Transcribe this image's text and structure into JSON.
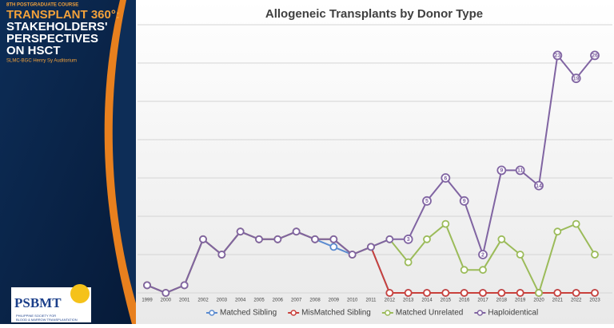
{
  "slide": {
    "course": "8TH POSTGRADUATE COURSE",
    "title_lines": [
      "TRANSPLANT 360°:",
      "STAKEHOLDERS'",
      "PERSPECTIVES",
      "ON HSCT"
    ],
    "venue": "SLMC-BGC Henry Sy Auditorium",
    "logo": "PSBMT",
    "logo_caption": [
      "PHILIPPINE SOCIETY FOR",
      "BLOOD & MARROW TRANSPLANTATION"
    ]
  },
  "chart_data": {
    "type": "line",
    "stacked": true,
    "title": "Allogeneic Transplants by Donor Type",
    "categories": [
      "1999",
      "2000",
      "2001",
      "2002",
      "2003",
      "2004",
      "2005",
      "2006",
      "2007",
      "2008",
      "2009",
      "2010",
      "2011",
      "2012",
      "2013",
      "2014",
      "2015",
      "2016",
      "2017",
      "2018",
      "2019",
      "2020",
      "2021",
      "2022",
      "2023"
    ],
    "series": [
      {
        "name": "Matched Sibling",
        "color": "#5b8bd0",
        "values": [
          1,
          0,
          1,
          7,
          5,
          8,
          7,
          7,
          8,
          7,
          6,
          5,
          6,
          0,
          0,
          0,
          0,
          0,
          0,
          0,
          0,
          0,
          0,
          0,
          0
        ]
      },
      {
        "name": "MisMatched Sibling",
        "color": "#c9413c",
        "values": [
          0,
          0,
          0,
          0,
          0,
          0,
          0,
          0,
          0,
          0,
          1,
          0,
          0,
          0,
          0,
          0,
          0,
          0,
          0,
          0,
          0,
          0,
          0,
          0,
          0
        ]
      },
      {
        "name": "Matched Unrelated",
        "color": "#9bbb59",
        "values": [
          0,
          0,
          0,
          0,
          0,
          0,
          0,
          0,
          0,
          0,
          0,
          0,
          0,
          7,
          4,
          7,
          9,
          3,
          3,
          7,
          5,
          0,
          8,
          9,
          5
        ]
      },
      {
        "name": "Haploidentical",
        "color": "#8064a2",
        "data_labels": true,
        "values": [
          0,
          0,
          0,
          0,
          0,
          0,
          0,
          0,
          0,
          0,
          0,
          0,
          0,
          0,
          3,
          5,
          6,
          9,
          2,
          9,
          11,
          14,
          23,
          19,
          26
        ]
      }
    ],
    "ylim": [
      0,
      35
    ],
    "yticks": [
      0,
      5,
      10,
      15,
      20,
      25,
      30,
      35
    ],
    "grid": true,
    "legend": "bottom"
  }
}
